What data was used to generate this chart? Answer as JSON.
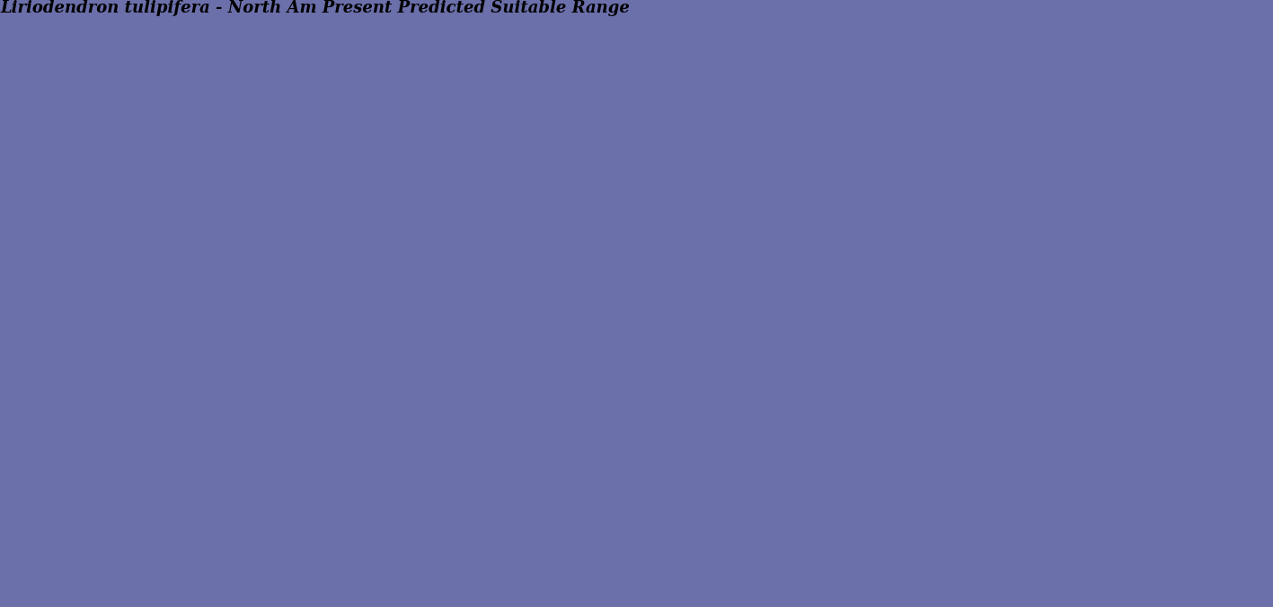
{
  "title": "Liriodendron tulipifera - North Am Present Predicted Suitable Range",
  "title_style": "italic",
  "title_fontsize": 13,
  "title_fontweight": "bold",
  "fig_width": 16.48,
  "fig_height": 6.84,
  "background_color": "#6b6faa",
  "land_color": "#ffffff",
  "border_color": "#000000",
  "suitable_range_color": "#9090cc",
  "suitable_range_alpha": 0.85,
  "occurrence_color": "#1a1acc",
  "ocean_color": "#6b6faa",
  "lake_color": "#8888cc",
  "xlim": [
    -128.0,
    -60.0
  ],
  "ylim": [
    22.0,
    53.5
  ],
  "border_linewidth": 0.8,
  "country_linewidth": 1.2,
  "dot_size": 1.5,
  "dot_alpha": 0.7,
  "random_seed": 42
}
